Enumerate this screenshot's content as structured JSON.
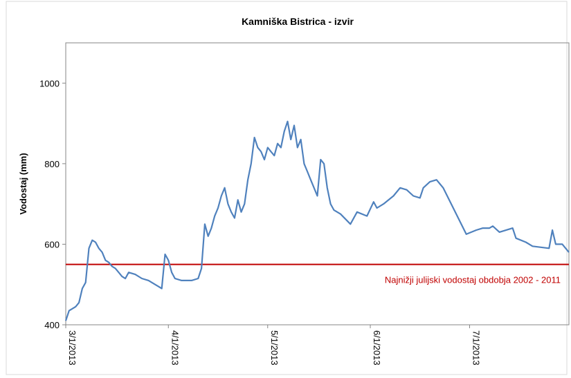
{
  "chart_data": {
    "type": "line",
    "title": "Kamniška Bistrica - izvir",
    "y_label": "Vodostaj (mm)",
    "x": [
      "2013-03-01",
      "2013-03-02",
      "2013-03-03",
      "2013-03-04",
      "2013-03-05",
      "2013-03-06",
      "2013-03-07",
      "2013-03-08",
      "2013-03-09",
      "2013-03-10",
      "2013-03-11",
      "2013-03-12",
      "2013-03-13",
      "2013-03-14",
      "2013-03-15",
      "2013-03-16",
      "2013-03-17",
      "2013-03-18",
      "2013-03-19",
      "2013-03-20",
      "2013-03-22",
      "2013-03-24",
      "2013-03-26",
      "2013-03-28",
      "2013-03-29",
      "2013-03-30",
      "2013-03-31",
      "2013-04-01",
      "2013-04-02",
      "2013-04-03",
      "2013-04-05",
      "2013-04-08",
      "2013-04-10",
      "2013-04-11",
      "2013-04-12",
      "2013-04-13",
      "2013-04-14",
      "2013-04-15",
      "2013-04-16",
      "2013-04-17",
      "2013-04-18",
      "2013-04-19",
      "2013-04-20",
      "2013-04-21",
      "2013-04-22",
      "2013-04-23",
      "2013-04-24",
      "2013-04-25",
      "2013-04-26",
      "2013-04-27",
      "2013-04-28",
      "2013-04-29",
      "2013-04-30",
      "2013-05-01",
      "2013-05-02",
      "2013-05-03",
      "2013-05-04",
      "2013-05-05",
      "2013-05-06",
      "2013-05-07",
      "2013-05-08",
      "2013-05-09",
      "2013-05-10",
      "2013-05-11",
      "2013-05-12",
      "2013-05-13",
      "2013-05-14",
      "2013-05-15",
      "2013-05-16",
      "2013-05-17",
      "2013-05-18",
      "2013-05-19",
      "2013-05-20",
      "2013-05-21",
      "2013-05-23",
      "2013-05-26",
      "2013-05-28",
      "2013-05-31",
      "2013-06-02",
      "2013-06-03",
      "2013-06-05",
      "2013-06-08",
      "2013-06-10",
      "2013-06-12",
      "2013-06-14",
      "2013-06-16",
      "2013-06-17",
      "2013-06-19",
      "2013-06-21",
      "2013-06-23",
      "2013-06-30",
      "2013-07-03",
      "2013-07-05",
      "2013-07-07",
      "2013-07-08",
      "2013-07-10",
      "2013-07-14",
      "2013-07-15",
      "2013-07-18",
      "2013-07-20",
      "2013-07-25",
      "2013-07-26",
      "2013-07-27",
      "2013-07-29",
      "2013-07-31"
    ],
    "series": [
      {
        "color": "#4f81bd",
        "values": [
          410,
          435,
          440,
          445,
          455,
          490,
          505,
          590,
          610,
          605,
          590,
          580,
          560,
          555,
          545,
          540,
          530,
          520,
          515,
          530,
          525,
          515,
          510,
          500,
          495,
          490,
          575,
          560,
          530,
          515,
          510,
          510,
          515,
          540,
          650,
          620,
          640,
          670,
          690,
          720,
          740,
          700,
          680,
          665,
          710,
          680,
          700,
          760,
          800,
          865,
          840,
          830,
          810,
          840,
          830,
          820,
          850,
          840,
          880,
          905,
          860,
          895,
          840,
          860,
          800,
          780,
          760,
          740,
          720,
          810,
          800,
          740,
          700,
          685,
          675,
          650,
          680,
          670,
          705,
          690,
          700,
          720,
          740,
          735,
          720,
          715,
          740,
          755,
          760,
          740,
          625,
          635,
          640,
          640,
          645,
          630,
          640,
          615,
          605,
          595,
          590,
          635,
          600,
          600,
          580
        ]
      }
    ],
    "xlim": [
      "2013-03-01",
      "2013-07-31"
    ],
    "xticks": [
      {
        "value": "2013-03-01",
        "label": "3/1/2013"
      },
      {
        "value": "2013-04-01",
        "label": "4/1/2013"
      },
      {
        "value": "2013-05-01",
        "label": "5/1/2013"
      },
      {
        "value": "2013-06-01",
        "label": "6/1/2013"
      },
      {
        "value": "2013-07-01",
        "label": "7/1/2013"
      }
    ],
    "ylim": [
      400,
      1100
    ],
    "yticks": [
      400,
      600,
      800,
      1000
    ],
    "reference_line": {
      "value": 550,
      "label": "Najnižji julijski vodostaj obdobja 2002 - 2011",
      "color": "#c00000"
    }
  }
}
